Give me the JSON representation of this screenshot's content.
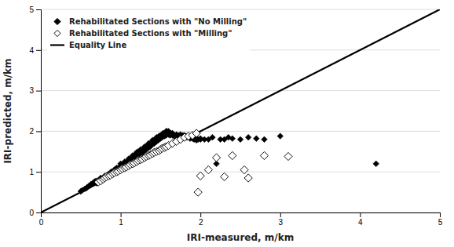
{
  "chart_data": {
    "type": "scatter",
    "xlabel": "IRI-measured, m/km",
    "ylabel": "IRI-predicted, m/km",
    "xlim": [
      0,
      5
    ],
    "ylim": [
      0,
      5
    ],
    "xticks": [
      0,
      1,
      2,
      3,
      4,
      5
    ],
    "yticks": [
      0,
      1,
      2,
      3,
      4,
      5
    ],
    "grid": "y",
    "legend": "upper left",
    "series": [
      {
        "name": "Rehabilitated Sections with \"No Milling\"",
        "color": "#000000",
        "marker": "diamond",
        "x": [
          0.5,
          0.52,
          0.55,
          0.57,
          0.58,
          0.6,
          0.62,
          0.63,
          0.65,
          0.67,
          0.68,
          0.7,
          0.7,
          0.72,
          0.73,
          0.75,
          0.75,
          0.77,
          0.78,
          0.8,
          0.8,
          0.82,
          0.83,
          0.85,
          0.85,
          0.87,
          0.88,
          0.88,
          0.9,
          0.9,
          0.92,
          0.92,
          0.93,
          0.95,
          0.95,
          0.95,
          0.97,
          0.97,
          0.98,
          1.0,
          1.0,
          1.0,
          1.0,
          1.02,
          1.02,
          1.03,
          1.03,
          1.05,
          1.05,
          1.05,
          1.07,
          1.07,
          1.08,
          1.08,
          1.1,
          1.1,
          1.1,
          1.12,
          1.12,
          1.13,
          1.13,
          1.15,
          1.15,
          1.15,
          1.17,
          1.17,
          1.18,
          1.18,
          1.2,
          1.2,
          1.2,
          1.22,
          1.22,
          1.22,
          1.23,
          1.25,
          1.25,
          1.25,
          1.27,
          1.27,
          1.28,
          1.28,
          1.3,
          1.3,
          1.3,
          1.32,
          1.32,
          1.33,
          1.33,
          1.35,
          1.35,
          1.35,
          1.37,
          1.37,
          1.38,
          1.38,
          1.4,
          1.4,
          1.4,
          1.42,
          1.42,
          1.43,
          1.43,
          1.45,
          1.45,
          1.45,
          1.47,
          1.47,
          1.48,
          1.48,
          1.5,
          1.5,
          1.5,
          1.52,
          1.52,
          1.53,
          1.55,
          1.55,
          1.55,
          1.57,
          1.57,
          1.58,
          1.58,
          1.6,
          1.6,
          1.6,
          1.62,
          1.63,
          1.65,
          1.65,
          1.67,
          1.68,
          1.7,
          1.7,
          1.72,
          1.73,
          1.75,
          1.75,
          1.77,
          1.78,
          1.8,
          1.8,
          1.82,
          1.83,
          1.85,
          1.85,
          1.87,
          1.88,
          1.9,
          1.9,
          1.92,
          1.95,
          1.95,
          1.97,
          2.0,
          2.0,
          2.05,
          2.1,
          2.15,
          2.2,
          2.25,
          2.3,
          2.35,
          2.4,
          2.5,
          2.6,
          2.7,
          2.8,
          3.0,
          4.2
        ],
        "values": [
          0.52,
          0.55,
          0.58,
          0.6,
          0.62,
          0.65,
          0.67,
          0.7,
          0.72,
          0.75,
          0.77,
          0.72,
          0.78,
          0.75,
          0.8,
          0.8,
          0.85,
          0.82,
          0.85,
          0.85,
          0.9,
          0.88,
          0.92,
          0.9,
          0.95,
          0.92,
          0.95,
          1.0,
          0.95,
          1.0,
          1.0,
          1.05,
          1.02,
          1.0,
          1.05,
          1.1,
          1.05,
          1.08,
          1.1,
          1.05,
          1.1,
          1.15,
          1.2,
          1.1,
          1.15,
          1.12,
          1.18,
          1.15,
          1.2,
          1.25,
          1.18,
          1.22,
          1.2,
          1.25,
          1.22,
          1.28,
          1.32,
          1.25,
          1.3,
          1.28,
          1.35,
          1.3,
          1.35,
          1.4,
          1.32,
          1.38,
          1.35,
          1.42,
          1.38,
          1.42,
          1.48,
          1.4,
          1.45,
          1.5,
          1.42,
          1.45,
          1.5,
          1.55,
          1.48,
          1.52,
          1.5,
          1.55,
          1.52,
          1.58,
          1.62,
          1.55,
          1.6,
          1.58,
          1.65,
          1.6,
          1.65,
          1.7,
          1.62,
          1.68,
          1.65,
          1.72,
          1.68,
          1.72,
          1.78,
          1.7,
          1.75,
          1.72,
          1.8,
          1.75,
          1.8,
          1.85,
          1.78,
          1.82,
          1.8,
          1.88,
          1.82,
          1.85,
          1.9,
          1.85,
          1.9,
          1.95,
          1.88,
          1.92,
          1.95,
          2.0,
          1.9,
          1.95,
          2.0,
          1.92,
          1.95,
          2.0,
          1.9,
          1.95,
          1.9,
          1.95,
          1.88,
          1.9,
          1.92,
          1.9,
          1.88,
          1.9,
          1.92,
          1.9,
          1.88,
          1.9,
          1.85,
          1.9,
          1.88,
          1.85,
          1.88,
          1.85,
          1.82,
          1.85,
          1.85,
          1.82,
          1.8,
          1.82,
          1.78,
          1.8,
          1.8,
          1.82,
          1.8,
          1.8,
          1.85,
          1.2,
          1.8,
          1.8,
          1.85,
          1.82,
          1.8,
          1.85,
          1.82,
          1.8,
          1.88,
          1.2
        ]
      },
      {
        "name": "Rehabilitated Sections with \"Milling\"",
        "color": "#ffffff",
        "marker": "diamond",
        "x": [
          0.72,
          0.75,
          0.78,
          0.8,
          0.82,
          0.85,
          0.87,
          0.9,
          0.92,
          0.95,
          0.97,
          1.0,
          1.02,
          1.05,
          1.07,
          1.1,
          1.12,
          1.15,
          1.17,
          1.2,
          1.22,
          1.25,
          1.27,
          1.3,
          1.32,
          1.35,
          1.37,
          1.4,
          1.42,
          1.45,
          1.48,
          1.5,
          1.52,
          1.55,
          1.57,
          1.6,
          1.65,
          1.7,
          1.75,
          1.8,
          1.85,
          1.9,
          1.95,
          1.97,
          2.0,
          2.1,
          2.2,
          2.3,
          2.4,
          2.55,
          2.6,
          2.8,
          3.1
        ],
        "values": [
          0.75,
          0.78,
          0.82,
          0.85,
          0.88,
          0.9,
          0.92,
          0.95,
          0.98,
          1.0,
          1.02,
          1.05,
          1.08,
          1.1,
          1.12,
          1.15,
          1.18,
          1.2,
          1.22,
          1.25,
          1.28,
          1.3,
          1.32,
          1.35,
          1.38,
          1.4,
          1.42,
          1.45,
          1.48,
          1.5,
          1.52,
          1.55,
          1.58,
          1.6,
          1.62,
          1.65,
          1.7,
          1.75,
          1.8,
          1.85,
          1.88,
          1.9,
          1.95,
          0.5,
          0.9,
          1.05,
          1.35,
          0.88,
          1.4,
          1.05,
          0.85,
          1.4,
          1.38
        ]
      },
      {
        "name": "Equality Line",
        "type": "line",
        "color": "#000000",
        "x": [
          0,
          5
        ],
        "values": [
          0,
          5
        ]
      }
    ]
  }
}
